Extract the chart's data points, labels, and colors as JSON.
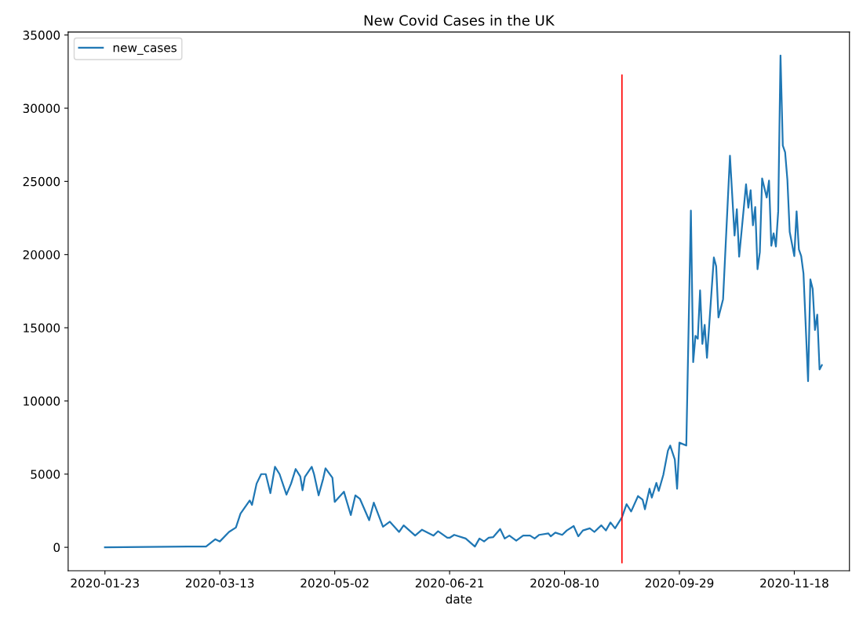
{
  "chart_data": {
    "type": "line",
    "title": "New Covid Cases in the UK",
    "xlabel": "date",
    "legend": "top left",
    "grid": false,
    "xlim": [
      "2020-01-07",
      "2020-12-12"
    ],
    "ylim": [
      -1600,
      35200
    ],
    "xticks": [
      "2020-01-23",
      "2020-03-13",
      "2020-05-02",
      "2020-06-21",
      "2020-08-10",
      "2020-09-29",
      "2020-11-18"
    ],
    "yticks": [
      0,
      5000,
      10000,
      15000,
      20000,
      25000,
      30000,
      35000
    ],
    "ref_lines": [
      {
        "axis": "x",
        "value": "2020-09-04",
        "color": "#ff0000",
        "line_style": "solid"
      }
    ],
    "series": [
      {
        "name": "new_cases",
        "color": "#1f77b4",
        "x": [
          "2020-01-23",
          "2020-02-28",
          "2020-03-07",
          "2020-03-11",
          "2020-03-13",
          "2020-03-17",
          "2020-03-20",
          "2020-03-22",
          "2020-03-26",
          "2020-03-27",
          "2020-03-29",
          "2020-03-31",
          "2020-04-02",
          "2020-04-04",
          "2020-04-06",
          "2020-04-08",
          "2020-04-11",
          "2020-04-13",
          "2020-04-15",
          "2020-04-17",
          "2020-04-18",
          "2020-04-19",
          "2020-04-22",
          "2020-04-23",
          "2020-04-25",
          "2020-04-27",
          "2020-04-28",
          "2020-05-01",
          "2020-05-02",
          "2020-05-06",
          "2020-05-09",
          "2020-05-11",
          "2020-05-13",
          "2020-05-17",
          "2020-05-19",
          "2020-05-23",
          "2020-05-26",
          "2020-05-30",
          "2020-06-01",
          "2020-06-06",
          "2020-06-09",
          "2020-06-14",
          "2020-06-16",
          "2020-06-20",
          "2020-06-21",
          "2020-06-23",
          "2020-06-28",
          "2020-07-02",
          "2020-07-04",
          "2020-07-06",
          "2020-07-08",
          "2020-07-10",
          "2020-07-13",
          "2020-07-15",
          "2020-07-17",
          "2020-07-20",
          "2020-07-23",
          "2020-07-26",
          "2020-07-28",
          "2020-07-30",
          "2020-08-03",
          "2020-08-04",
          "2020-08-06",
          "2020-08-09",
          "2020-08-11",
          "2020-08-14",
          "2020-08-16",
          "2020-08-18",
          "2020-08-21",
          "2020-08-23",
          "2020-08-26",
          "2020-08-28",
          "2020-08-30",
          "2020-09-01",
          "2020-09-04",
          "2020-09-06",
          "2020-09-08",
          "2020-09-11",
          "2020-09-13",
          "2020-09-14",
          "2020-09-16",
          "2020-09-17",
          "2020-09-19",
          "2020-09-20",
          "2020-09-22",
          "2020-09-24",
          "2020-09-25",
          "2020-09-27",
          "2020-09-28",
          "2020-09-29",
          "2020-10-02",
          "2020-10-04",
          "2020-10-05",
          "2020-10-06",
          "2020-10-07",
          "2020-10-08",
          "2020-10-09",
          "2020-10-10",
          "2020-10-11",
          "2020-10-14",
          "2020-10-15",
          "2020-10-16",
          "2020-10-18",
          "2020-10-21",
          "2020-10-23",
          "2020-10-24",
          "2020-10-25",
          "2020-10-28",
          "2020-10-29",
          "2020-10-30",
          "2020-10-31",
          "2020-11-01",
          "2020-11-02",
          "2020-11-03",
          "2020-11-04",
          "2020-11-06",
          "2020-11-07",
          "2020-11-08",
          "2020-11-09",
          "2020-11-10",
          "2020-11-11",
          "2020-11-12",
          "2020-11-13",
          "2020-11-14",
          "2020-11-15",
          "2020-11-16",
          "2020-11-18",
          "2020-11-19",
          "2020-11-20",
          "2020-11-21",
          "2020-11-22",
          "2020-11-24",
          "2020-11-25",
          "2020-11-26",
          "2020-11-27",
          "2020-11-28",
          "2020-11-29",
          "2020-11-30"
        ],
        "values": [
          0,
          50,
          50,
          550,
          400,
          1050,
          1350,
          2300,
          3200,
          2900,
          4350,
          5000,
          5000,
          3700,
          5500,
          5000,
          3600,
          4350,
          5350,
          4850,
          3900,
          4800,
          5500,
          5000,
          3550,
          4700,
          5400,
          4750,
          3100,
          3800,
          2200,
          3550,
          3300,
          1850,
          3050,
          1400,
          1750,
          1050,
          1500,
          800,
          1200,
          800,
          1100,
          650,
          650,
          850,
          600,
          50,
          600,
          400,
          650,
          700,
          1250,
          600,
          800,
          450,
          800,
          800,
          600,
          850,
          950,
          750,
          1000,
          850,
          1150,
          1450,
          750,
          1150,
          1300,
          1050,
          1500,
          1150,
          1700,
          1300,
          2050,
          2950,
          2450,
          3500,
          3250,
          2600,
          4000,
          3400,
          4400,
          3850,
          4950,
          6600,
          6950,
          6000,
          4000,
          7150,
          6950,
          23000,
          12650,
          14450,
          14250,
          17550,
          13900,
          15200,
          12950,
          19800,
          19200,
          15700,
          16950,
          26750,
          21300,
          23100,
          19850,
          24800,
          23200,
          24400,
          22000,
          23250,
          19000,
          20150,
          25200,
          23900,
          25050,
          20600,
          21450,
          20550,
          22950,
          33600,
          27450,
          27000,
          25100,
          21550,
          19900,
          22950,
          20350,
          19900,
          18700,
          11350,
          18300,
          17650,
          14850,
          15900,
          12150,
          12450
        ]
      }
    ]
  }
}
